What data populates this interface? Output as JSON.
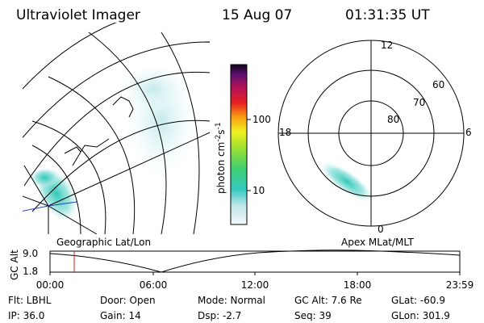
{
  "header": {
    "title": "Ultraviolet Imager",
    "date": "15 Aug 07",
    "time": "01:31:35 UT"
  },
  "colorbar": {
    "label": [
      "photon cm",
      "-2",
      "s",
      "-1"
    ],
    "ticks": [
      "100",
      "10"
    ]
  },
  "geo_panel": {
    "label": "Geographic Lat/Lon"
  },
  "polar_panel": {
    "label": "Apex MLat/MLT",
    "mlt_labels": [
      "12",
      "18",
      "6",
      "0"
    ],
    "lat_labels": [
      "60",
      "70",
      "80"
    ]
  },
  "timeline": {
    "axis_label": "GC Alt",
    "yticks": [
      "9.0",
      "1.8"
    ],
    "xticks": [
      "00:00",
      "06:00",
      "12:00",
      "18:00",
      "23:59"
    ]
  },
  "footer": {
    "rows": [
      [
        "Flt: LBHL",
        "Door: Open",
        "Mode: Normal",
        "GC Alt: 7.6 Re",
        "GLat: -60.9"
      ],
      [
        "IP: 36.0",
        "Gain: 14",
        "Dsp:  -2.7",
        "Seq: 39",
        "GLon: 301.9"
      ]
    ]
  }
}
